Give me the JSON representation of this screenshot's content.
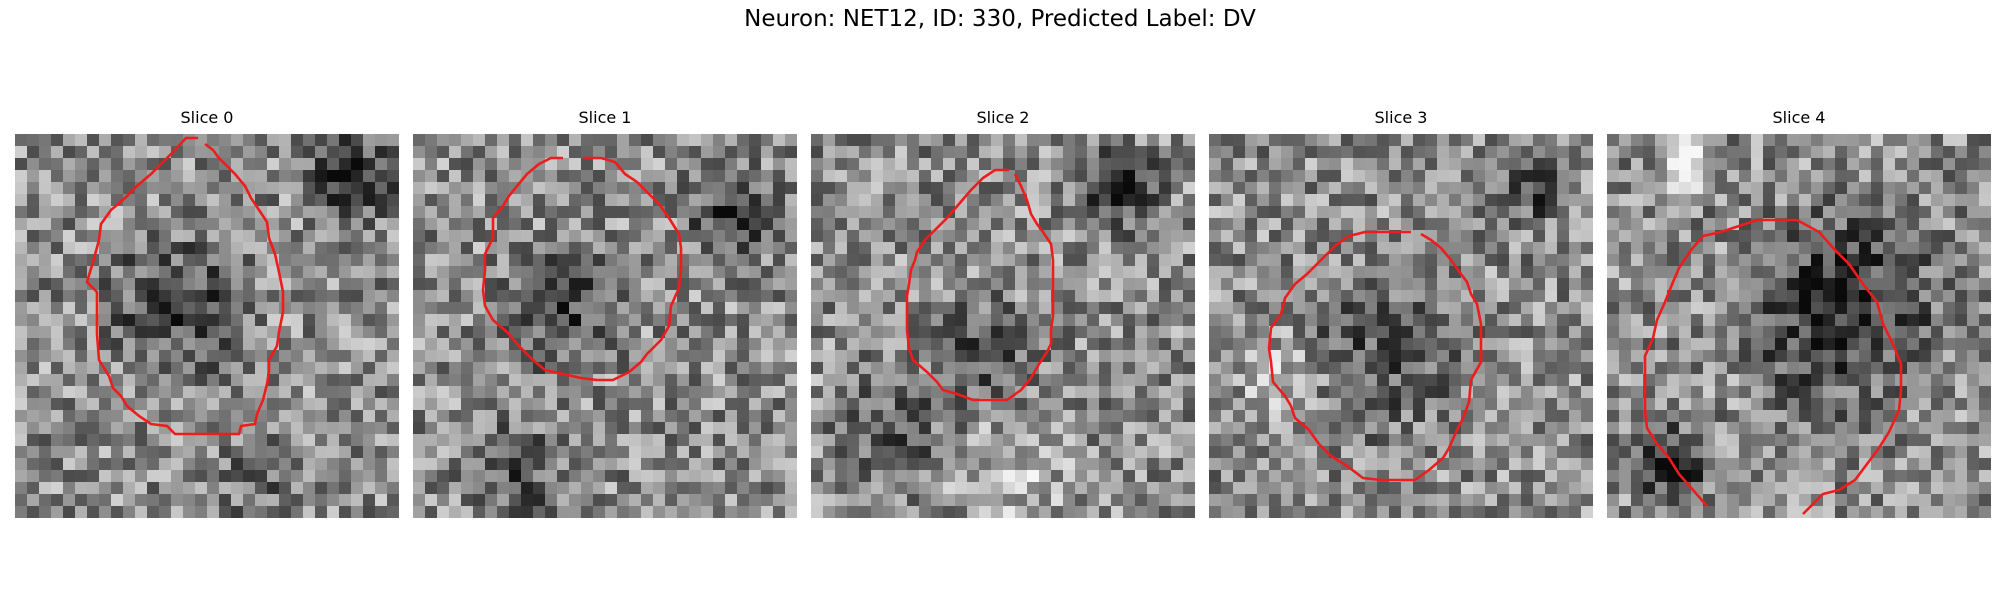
{
  "figure": {
    "title": "Neuron: NET12, ID: 330, Predicted Label: DV"
  },
  "panels": [
    {
      "title": "Slice 0"
    },
    {
      "title": "Slice 1"
    },
    {
      "title": "Slice 2"
    },
    {
      "title": "Slice 3"
    },
    {
      "title": "Slice 4"
    }
  ],
  "colors": {
    "contour": "#ee1c1c",
    "background": "#ffffff"
  }
}
